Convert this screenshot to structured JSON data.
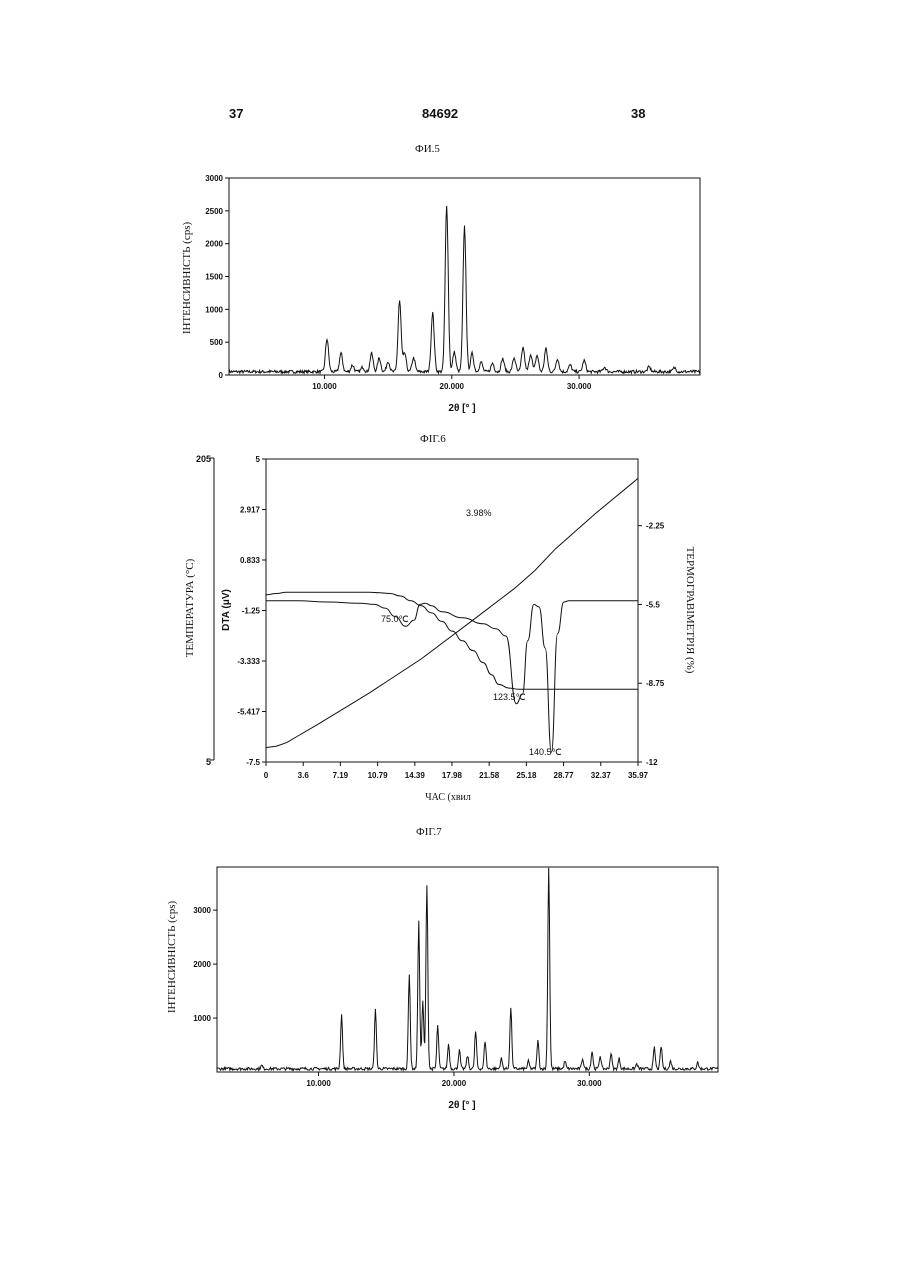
{
  "page": {
    "left_number": "37",
    "center_number": "84692",
    "right_number": "38"
  },
  "colors": {
    "ink": "#111111",
    "background": "#ffffff"
  },
  "chart_data": [
    {
      "figure": "ФИ.5",
      "type": "line",
      "xlabel": "2θ [° ]",
      "ylabel": "ІНТЕНСИВНІСТЬ (cps)",
      "xlim": [
        2.5,
        39.5
      ],
      "ylim": [
        0,
        3000
      ],
      "xticks": [
        "10.000",
        "20.000",
        "30.000"
      ],
      "xtick_values": [
        10,
        20,
        30
      ],
      "yticks": [
        "0",
        "500",
        "1000",
        "1500",
        "2000",
        "2500",
        "3000"
      ],
      "ytick_values": [
        0,
        500,
        1000,
        1500,
        2000,
        2500,
        3000
      ],
      "baseline": 50,
      "peaks": [
        {
          "x": 10.2,
          "y": 550
        },
        {
          "x": 11.3,
          "y": 330
        },
        {
          "x": 12.2,
          "y": 150
        },
        {
          "x": 13.0,
          "y": 120
        },
        {
          "x": 13.7,
          "y": 330
        },
        {
          "x": 14.3,
          "y": 260
        },
        {
          "x": 15.0,
          "y": 210
        },
        {
          "x": 15.9,
          "y": 1130
        },
        {
          "x": 16.3,
          "y": 330
        },
        {
          "x": 17.0,
          "y": 260
        },
        {
          "x": 18.5,
          "y": 950
        },
        {
          "x": 19.6,
          "y": 2570
        },
        {
          "x": 20.2,
          "y": 350
        },
        {
          "x": 21.0,
          "y": 2260
        },
        {
          "x": 21.6,
          "y": 330
        },
        {
          "x": 22.3,
          "y": 200
        },
        {
          "x": 23.2,
          "y": 180
        },
        {
          "x": 24.0,
          "y": 250
        },
        {
          "x": 24.9,
          "y": 260
        },
        {
          "x": 25.6,
          "y": 420
        },
        {
          "x": 26.2,
          "y": 320
        },
        {
          "x": 26.7,
          "y": 300
        },
        {
          "x": 27.4,
          "y": 400
        },
        {
          "x": 28.3,
          "y": 250
        },
        {
          "x": 29.3,
          "y": 150
        },
        {
          "x": 30.4,
          "y": 220
        },
        {
          "x": 32.0,
          "y": 120
        },
        {
          "x": 35.5,
          "y": 120
        },
        {
          "x": 37.5,
          "y": 110
        }
      ]
    },
    {
      "figure": "ФІГ.6",
      "type": "line",
      "xlabel": "ЧАС (хвил",
      "ylabel": "DTA (μV)",
      "left_outer_label": "ТЕМПЕРАТУРА (°C)",
      "left_outer_ticks": [
        "205",
        "5"
      ],
      "y2label": "ТЕРМОГРАВІМЕТРІЯ (%)",
      "xlim": [
        0,
        35.97
      ],
      "ylim": [
        -7.5,
        5
      ],
      "y2lim": [
        -12,
        0.5
      ],
      "xticks": [
        "0",
        "3.6",
        "7.19",
        "10.79",
        "14.39",
        "17.98",
        "21.58",
        "25.18",
        "28.77",
        "32.37",
        "35.97"
      ],
      "xtick_values": [
        0,
        3.6,
        7.19,
        10.79,
        14.39,
        17.98,
        21.58,
        25.18,
        28.77,
        32.37,
        35.97
      ],
      "yticks": [
        "5",
        "2.917",
        "0.833",
        "-1.25",
        "-3.333",
        "-5.417",
        "-7.5"
      ],
      "ytick_values": [
        5,
        2.917,
        0.833,
        -1.25,
        -3.333,
        -5.417,
        -7.5
      ],
      "y2ticks": [
        "-2.25",
        "-5.5",
        "-8.75",
        "-12"
      ],
      "y2tick_values": [
        -2.25,
        -5.5,
        -8.75,
        -12
      ],
      "annotations": [
        "3.98%",
        "75.0℃",
        "123.5℃",
        "140.5℃"
      ],
      "series": [
        {
          "x": [
            0,
            1,
            2,
            3,
            5,
            8,
            10,
            11,
            12,
            13,
            14,
            15,
            16,
            17,
            18,
            19,
            20,
            21,
            21.8,
            22.5,
            23.5,
            24.5,
            26,
            28,
            30,
            33,
            35.97
          ],
          "y": [
            -0.6,
            -0.55,
            -0.5,
            -0.5,
            -0.5,
            -0.5,
            -0.5,
            -0.52,
            -0.55,
            -0.65,
            -0.85,
            -1.05,
            -1.35,
            -1.7,
            -2.1,
            -2.5,
            -2.9,
            -3.4,
            -3.9,
            -4.3,
            -4.45,
            -4.5,
            -4.5,
            -4.5,
            -4.5,
            -4.5,
            -4.5
          ]
        },
        {
          "x": [
            0,
            3,
            6,
            9,
            10.5,
            11.5,
            12.5,
            13.5,
            14.3,
            14.9,
            15.4,
            16,
            17,
            19,
            21,
            22.2,
            23.2,
            24.2,
            24.8,
            25.3,
            25.9,
            26.4,
            27,
            27.6,
            28.2,
            28.8,
            29.3,
            29.8,
            31,
            33,
            35.97
          ],
          "y": [
            -0.85,
            -0.85,
            -0.9,
            -0.95,
            -1.0,
            -1.15,
            -1.5,
            -1.9,
            -1.65,
            -1.0,
            -0.95,
            -1.05,
            -1.3,
            -1.55,
            -1.8,
            -2.0,
            -2.3,
            -5.1,
            -4.7,
            -2.5,
            -1.0,
            -1.1,
            -2.8,
            -7.1,
            -2.2,
            -0.9,
            -0.85,
            -0.85,
            -0.85,
            -0.85,
            -0.85
          ]
        },
        {
          "x": [
            0,
            1,
            2,
            3,
            5,
            10,
            15,
            20,
            24,
            26,
            28,
            32,
            35.97
          ],
          "y": [
            -6.9,
            -6.85,
            -6.7,
            -6.45,
            -5.95,
            -4.65,
            -3.25,
            -1.65,
            -0.35,
            0.4,
            1.3,
            2.8,
            4.2
          ]
        }
      ]
    },
    {
      "figure": "ФІГ.7",
      "type": "line",
      "xlabel": "2θ [° ]",
      "ylabel": "ІНТЕНСИВНІСТЬ (cps)",
      "xlim": [
        2.5,
        39.5
      ],
      "ylim": [
        0,
        3800
      ],
      "xticks": [
        "10.000",
        "20.000",
        "30.000"
      ],
      "xtick_values": [
        10,
        20,
        30
      ],
      "yticks": [
        "1000",
        "2000",
        "3000"
      ],
      "ytick_values": [
        1000,
        2000,
        3000
      ],
      "baseline": 60,
      "peaks": [
        {
          "x": 5.8,
          "y": 120
        },
        {
          "x": 11.7,
          "y": 1060
        },
        {
          "x": 14.2,
          "y": 1150
        },
        {
          "x": 16.7,
          "y": 1800
        },
        {
          "x": 17.4,
          "y": 2780
        },
        {
          "x": 17.7,
          "y": 1300
        },
        {
          "x": 18.0,
          "y": 3450
        },
        {
          "x": 18.8,
          "y": 850
        },
        {
          "x": 19.6,
          "y": 520
        },
        {
          "x": 20.4,
          "y": 400
        },
        {
          "x": 21.0,
          "y": 300
        },
        {
          "x": 21.6,
          "y": 750
        },
        {
          "x": 22.3,
          "y": 580
        },
        {
          "x": 23.5,
          "y": 250
        },
        {
          "x": 24.2,
          "y": 1200
        },
        {
          "x": 25.5,
          "y": 200
        },
        {
          "x": 26.2,
          "y": 580
        },
        {
          "x": 27.0,
          "y": 3800
        },
        {
          "x": 28.2,
          "y": 200
        },
        {
          "x": 29.5,
          "y": 250
        },
        {
          "x": 30.2,
          "y": 380
        },
        {
          "x": 30.8,
          "y": 300
        },
        {
          "x": 31.6,
          "y": 350
        },
        {
          "x": 32.2,
          "y": 250
        },
        {
          "x": 33.5,
          "y": 150
        },
        {
          "x": 34.8,
          "y": 450
        },
        {
          "x": 35.3,
          "y": 480
        },
        {
          "x": 36.0,
          "y": 200
        },
        {
          "x": 38.0,
          "y": 180
        }
      ]
    }
  ]
}
